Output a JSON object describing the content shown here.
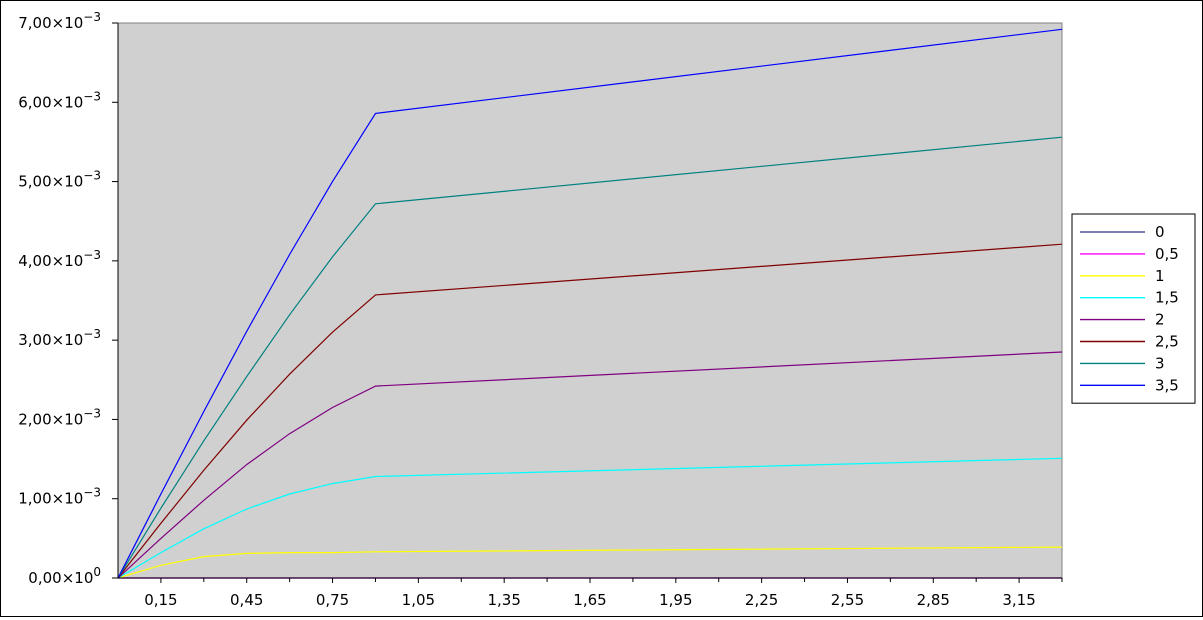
{
  "chart_data": {
    "type": "line",
    "title": "",
    "xlabel": "",
    "ylabel": "",
    "xlim": [
      0,
      3.3
    ],
    "ylim": [
      0,
      0.007
    ],
    "x": [
      0,
      0.15,
      0.3,
      0.45,
      0.6,
      0.75,
      0.9,
      3.3
    ],
    "y_ticks": [
      {
        "value": 0.0,
        "mantissa": "0,00",
        "base": "×10",
        "exp": "0"
      },
      {
        "value": 0.001,
        "mantissa": "1,00",
        "base": "×10",
        "exp": "−3"
      },
      {
        "value": 0.002,
        "mantissa": "2,00",
        "base": "×10",
        "exp": "−3"
      },
      {
        "value": 0.003,
        "mantissa": "3,00",
        "base": "×10",
        "exp": "−3"
      },
      {
        "value": 0.004,
        "mantissa": "4,00",
        "base": "×10",
        "exp": "−3"
      },
      {
        "value": 0.005,
        "mantissa": "5,00",
        "base": "×10",
        "exp": "−3"
      },
      {
        "value": 0.006,
        "mantissa": "6,00",
        "base": "×10",
        "exp": "−3"
      },
      {
        "value": 0.007,
        "mantissa": "7,00",
        "base": "×10",
        "exp": "−3"
      }
    ],
    "x_ticks": [
      {
        "value": 0.15,
        "label": "0,15"
      },
      {
        "value": 0.45,
        "label": "0,45"
      },
      {
        "value": 0.75,
        "label": "0,75"
      },
      {
        "value": 1.05,
        "label": "1,05"
      },
      {
        "value": 1.35,
        "label": "1,35"
      },
      {
        "value": 1.65,
        "label": "1,65"
      },
      {
        "value": 1.95,
        "label": "1,95"
      },
      {
        "value": 2.25,
        "label": "2,25"
      },
      {
        "value": 2.55,
        "label": "2,55"
      },
      {
        "value": 2.85,
        "label": "2,85"
      },
      {
        "value": 3.15,
        "label": "3,15"
      }
    ],
    "x_minor_ticks": [
      0.3,
      0.6,
      0.9,
      1.2,
      1.5,
      1.8,
      2.1,
      2.4,
      2.7,
      3.0,
      3.3
    ],
    "grid": false,
    "plot_background": "#d0d0d0",
    "legend_position": "right",
    "series": [
      {
        "name": "0",
        "color": "#555599",
        "values": [
          0,
          0,
          0,
          0,
          0,
          0,
          0,
          0
        ]
      },
      {
        "name": "0,5",
        "color": "#ff00ff",
        "values": [
          0,
          0,
          0,
          0,
          0,
          0,
          0,
          0
        ]
      },
      {
        "name": "1",
        "color": "#ffff00",
        "values": [
          0,
          0.00016,
          0.00027,
          0.00031,
          0.00032,
          0.00032,
          0.00033,
          0.00039
        ]
      },
      {
        "name": "1,5",
        "color": "#00ffff",
        "values": [
          0,
          0.00032,
          0.00062,
          0.00087,
          0.00106,
          0.00119,
          0.00128,
          0.00151
        ]
      },
      {
        "name": "2",
        "color": "#800080",
        "values": [
          0,
          0.0005,
          0.00098,
          0.00143,
          0.00182,
          0.00215,
          0.00242,
          0.00285
        ]
      },
      {
        "name": "2,5",
        "color": "#800000",
        "values": [
          0,
          0.00069,
          0.00136,
          0.00199,
          0.00257,
          0.0031,
          0.00357,
          0.00421
        ]
      },
      {
        "name": "3",
        "color": "#008080",
        "values": [
          0,
          0.00088,
          0.00173,
          0.00254,
          0.00332,
          0.00405,
          0.00472,
          0.00556
        ]
      },
      {
        "name": "3,5",
        "color": "#0000ff",
        "values": [
          0,
          0.00106,
          0.0021,
          0.00311,
          0.00408,
          0.005,
          0.00586,
          0.00692
        ]
      }
    ]
  }
}
